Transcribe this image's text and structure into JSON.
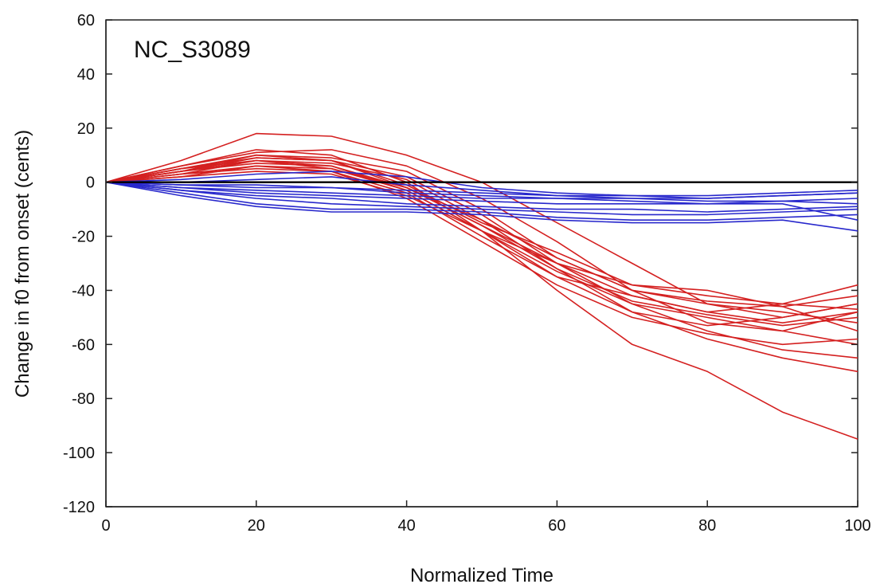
{
  "chart_data": {
    "type": "line",
    "title": "NC_S3089",
    "xlabel": "Normalized Time",
    "ylabel": "Change in f0 from onset (cents)",
    "xlim": [
      0,
      100
    ],
    "ylim": [
      -120,
      60
    ],
    "xticks": [
      0,
      20,
      40,
      60,
      80,
      100
    ],
    "yticks": [
      -120,
      -100,
      -80,
      -60,
      -40,
      -20,
      0,
      20,
      40,
      60
    ],
    "grid": false,
    "legend": "none",
    "reference_line": {
      "y": 0,
      "color": "#000000"
    },
    "colors": {
      "red_group": "#d42020",
      "blue_group": "#2828cc"
    },
    "series": [
      {
        "group": "red",
        "x": [
          0,
          10,
          20,
          30,
          40,
          50,
          60,
          70,
          80,
          90,
          100
        ],
        "y": [
          0,
          8,
          18,
          17,
          10,
          0,
          -15,
          -30,
          -45,
          -50,
          -45
        ]
      },
      {
        "group": "red",
        "x": [
          0,
          10,
          20,
          30,
          40,
          50,
          60,
          70,
          80,
          90,
          100
        ],
        "y": [
          0,
          6,
          11,
          12,
          6,
          -6,
          -22,
          -40,
          -52,
          -55,
          -48
        ]
      },
      {
        "group": "red",
        "x": [
          0,
          10,
          20,
          30,
          40,
          50,
          60,
          70,
          80,
          90,
          100
        ],
        "y": [
          0,
          5,
          10,
          9,
          4,
          -10,
          -28,
          -40,
          -45,
          -48,
          -52
        ]
      },
      {
        "group": "red",
        "x": [
          0,
          10,
          20,
          30,
          40,
          50,
          60,
          70,
          80,
          90,
          100
        ],
        "y": [
          0,
          4,
          9,
          8,
          2,
          -12,
          -30,
          -45,
          -55,
          -62,
          -65
        ]
      },
      {
        "group": "red",
        "x": [
          0,
          10,
          20,
          30,
          40,
          50,
          60,
          70,
          80,
          90,
          100
        ],
        "y": [
          0,
          3,
          8,
          7,
          1,
          -14,
          -32,
          -48,
          -58,
          -65,
          -70
        ]
      },
      {
        "group": "red",
        "x": [
          0,
          10,
          20,
          30,
          40,
          50,
          60,
          70,
          80,
          90,
          100
        ],
        "y": [
          0,
          6,
          12,
          10,
          0,
          -18,
          -40,
          -60,
          -70,
          -85,
          -95
        ]
      },
      {
        "group": "red",
        "x": [
          0,
          10,
          20,
          30,
          40,
          50,
          60,
          70,
          80,
          90,
          100
        ],
        "y": [
          0,
          2,
          6,
          5,
          -2,
          -16,
          -30,
          -38,
          -42,
          -45,
          -38
        ]
      },
      {
        "group": "red",
        "x": [
          0,
          10,
          20,
          30,
          40,
          50,
          60,
          70,
          80,
          90,
          100
        ],
        "y": [
          0,
          4,
          7,
          6,
          -3,
          -18,
          -35,
          -48,
          -53,
          -50,
          -45
        ]
      },
      {
        "group": "red",
        "x": [
          0,
          10,
          20,
          30,
          40,
          50,
          60,
          70,
          80,
          90,
          100
        ],
        "y": [
          0,
          5,
          9,
          8,
          -1,
          -15,
          -26,
          -38,
          -40,
          -46,
          -55
        ]
      },
      {
        "group": "red",
        "x": [
          0,
          10,
          20,
          30,
          40,
          50,
          60,
          70,
          80,
          90,
          100
        ],
        "y": [
          0,
          3,
          5,
          4,
          -4,
          -20,
          -35,
          -42,
          -48,
          -45,
          -47
        ]
      },
      {
        "group": "red",
        "x": [
          0,
          10,
          20,
          30,
          40,
          50,
          60,
          70,
          80,
          90,
          100
        ],
        "y": [
          0,
          4,
          8,
          5,
          -3,
          -18,
          -33,
          -45,
          -50,
          -55,
          -60
        ]
      },
      {
        "group": "red",
        "x": [
          0,
          10,
          20,
          30,
          40,
          50,
          60,
          70,
          80,
          90,
          100
        ],
        "y": [
          0,
          2,
          4,
          3,
          -5,
          -18,
          -30,
          -42,
          -48,
          -52,
          -48
        ]
      },
      {
        "group": "red",
        "x": [
          0,
          10,
          20,
          30,
          40,
          50,
          60,
          70,
          80,
          90,
          100
        ],
        "y": [
          0,
          5,
          8,
          6,
          -2,
          -14,
          -28,
          -40,
          -44,
          -46,
          -42
        ]
      },
      {
        "group": "red",
        "x": [
          0,
          10,
          20,
          30,
          40,
          50,
          60,
          70,
          80,
          90,
          100
        ],
        "y": [
          0,
          3,
          6,
          4,
          -6,
          -22,
          -38,
          -50,
          -56,
          -60,
          -58
        ]
      },
      {
        "group": "red",
        "x": [
          0,
          10,
          20,
          30,
          40,
          50,
          60,
          70,
          80,
          90,
          100
        ],
        "y": [
          0,
          4,
          10,
          8,
          -2,
          -16,
          -32,
          -44,
          -49,
          -53,
          -50
        ]
      },
      {
        "group": "blue",
        "x": [
          0,
          10,
          20,
          30,
          40,
          50,
          60,
          70,
          80,
          90,
          100
        ],
        "y": [
          0,
          1,
          3,
          4,
          2,
          -2,
          -4,
          -5,
          -5,
          -4,
          -3
        ]
      },
      {
        "group": "blue",
        "x": [
          0,
          10,
          20,
          30,
          40,
          50,
          60,
          70,
          80,
          90,
          100
        ],
        "y": [
          0,
          -1,
          -2,
          -2,
          -3,
          -4,
          -5,
          -5,
          -6,
          -5,
          -4
        ]
      },
      {
        "group": "blue",
        "x": [
          0,
          10,
          20,
          30,
          40,
          50,
          60,
          70,
          80,
          90,
          100
        ],
        "y": [
          0,
          -2,
          -4,
          -5,
          -6,
          -7,
          -8,
          -8,
          -8,
          -7,
          -6
        ]
      },
      {
        "group": "blue",
        "x": [
          0,
          10,
          20,
          30,
          40,
          50,
          60,
          70,
          80,
          90,
          100
        ],
        "y": [
          0,
          -3,
          -6,
          -8,
          -9,
          -10,
          -11,
          -12,
          -12,
          -11,
          -10
        ]
      },
      {
        "group": "blue",
        "x": [
          0,
          10,
          20,
          30,
          40,
          50,
          60,
          70,
          80,
          90,
          100
        ],
        "y": [
          0,
          -4,
          -8,
          -10,
          -10,
          -11,
          -13,
          -14,
          -14,
          -13,
          -12
        ]
      },
      {
        "group": "blue",
        "x": [
          0,
          10,
          20,
          30,
          40,
          50,
          60,
          70,
          80,
          90,
          100
        ],
        "y": [
          0,
          -5,
          -9,
          -11,
          -11,
          -12,
          -14,
          -15,
          -15,
          -14,
          -18
        ]
      },
      {
        "group": "blue",
        "x": [
          0,
          10,
          20,
          30,
          40,
          50,
          60,
          70,
          80,
          90,
          100
        ],
        "y": [
          0,
          -2,
          -3,
          -4,
          -5,
          -6,
          -6,
          -7,
          -8,
          -8,
          -14
        ]
      },
      {
        "group": "blue",
        "x": [
          0,
          10,
          20,
          30,
          40,
          50,
          60,
          70,
          80,
          90,
          100
        ],
        "y": [
          0,
          -1,
          -1,
          -2,
          -4,
          -5,
          -6,
          -6,
          -7,
          -7,
          -8
        ]
      },
      {
        "group": "blue",
        "x": [
          0,
          10,
          20,
          30,
          40,
          50,
          60,
          70,
          80,
          90,
          100
        ],
        "y": [
          0,
          0,
          1,
          2,
          -1,
          -3,
          -5,
          -6,
          -6,
          -5,
          -4
        ]
      },
      {
        "group": "blue",
        "x": [
          0,
          10,
          20,
          30,
          40,
          50,
          60,
          70,
          80,
          90,
          100
        ],
        "y": [
          0,
          -3,
          -5,
          -6,
          -8,
          -9,
          -10,
          -10,
          -11,
          -10,
          -9
        ]
      }
    ]
  }
}
